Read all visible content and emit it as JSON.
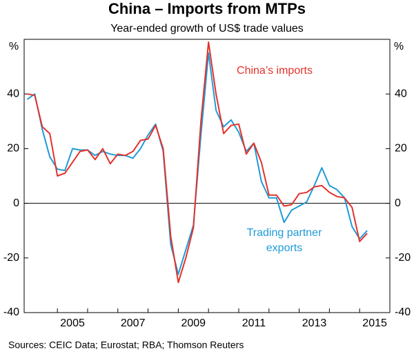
{
  "chart_data": {
    "type": "line",
    "title": "China – Imports from MTPs",
    "subtitle": "Year-ended growth of US$ trade values",
    "y_unit": "%",
    "source": "Sources:   CEIC Data; Eurostat; RBA; Thomson Reuters",
    "x": [
      2004,
      2004.25,
      2004.5,
      2004.75,
      2005,
      2005.25,
      2005.5,
      2005.75,
      2006,
      2006.25,
      2006.5,
      2006.75,
      2007,
      2007.25,
      2007.5,
      2007.75,
      2008,
      2008.25,
      2008.5,
      2008.75,
      2009,
      2009.25,
      2009.5,
      2009.75,
      2010,
      2010.25,
      2010.5,
      2010.75,
      2011,
      2011.25,
      2011.5,
      2011.75,
      2012,
      2012.25,
      2012.5,
      2012.75,
      2013,
      2013.25,
      2013.5,
      2013.75,
      2014,
      2014.25,
      2014.5,
      2014.75,
      2015,
      2015.25
    ],
    "series": [
      {
        "name": "China’s imports",
        "color": "#e4312b",
        "values": [
          40,
          39.5,
          28,
          25.5,
          10,
          11,
          15,
          19,
          19.5,
          16,
          20,
          14.5,
          18,
          17.5,
          19,
          23,
          23.5,
          28.5,
          20,
          -12,
          -29,
          -20,
          -9,
          30,
          59,
          40,
          25.5,
          28.5,
          29,
          18,
          22,
          15,
          3,
          3,
          -1,
          -0.5,
          3.5,
          4,
          6,
          6.5,
          4,
          2.5,
          2,
          -1.5,
          -14,
          -11
        ]
      },
      {
        "name": "Trading partner exports",
        "label_lines": [
          "Trading partner",
          "exports"
        ],
        "color": "#1e9bd7",
        "values": [
          38,
          40,
          27,
          17,
          12.5,
          12,
          20,
          19.5,
          19.5,
          17.5,
          19,
          18,
          17.5,
          17.5,
          16.5,
          20,
          25,
          29,
          19,
          -15,
          -26,
          -17,
          -8,
          25,
          55,
          34,
          28,
          30.5,
          26,
          19,
          22,
          8,
          2,
          2,
          -7,
          -2.5,
          -1,
          0.5,
          6.5,
          13,
          6.5,
          5,
          2,
          -8.5,
          -13,
          -10
        ]
      }
    ],
    "xlim": [
      2003.9,
      2016
    ],
    "xticks": [
      {
        "value": 2005.5,
        "label": "2005"
      },
      {
        "value": 2007.5,
        "label": "2007"
      },
      {
        "value": 2009.5,
        "label": "2009"
      },
      {
        "value": 2011.5,
        "label": "2011"
      },
      {
        "value": 2013.5,
        "label": "2013"
      },
      {
        "value": 2015.5,
        "label": "2015"
      }
    ],
    "xtick_marks": [
      2005,
      2006,
      2007,
      2008,
      2009,
      2010,
      2011,
      2012,
      2013,
      2014,
      2015
    ],
    "ylim": [
      -40,
      60
    ],
    "yticks": [
      -40,
      -20,
      0,
      20,
      40
    ]
  }
}
